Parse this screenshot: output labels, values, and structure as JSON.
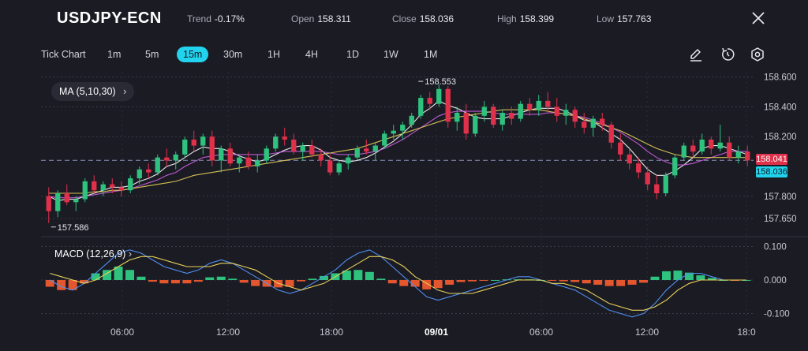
{
  "header": {
    "symbol": "USDJPY-ECN",
    "trend_label": "Trend",
    "trend_value": "-0.17%",
    "open_label": "Open",
    "open_value": "158.311",
    "close_label": "Close",
    "close_value": "158.036",
    "high_label": "High",
    "high_value": "158.399",
    "low_label": "Low",
    "low_value": "157.763",
    "close_icon": "close-icon"
  },
  "toolbar": {
    "chart_type": "Tick Chart",
    "timeframes": [
      "1m",
      "5m",
      "15m",
      "30m",
      "1H",
      "4H",
      "1D",
      "1W",
      "1M"
    ],
    "active_timeframe": "15m",
    "tools": [
      "draw-pencil-icon",
      "reset-timer-icon",
      "settings-hexagon-icon"
    ]
  },
  "indicators": {
    "ma_label": "MA",
    "ma_params": "(5,10,30)",
    "macd_label": "MACD",
    "macd_params": "(12,26,9)"
  },
  "colors": {
    "background": "#1b1b24",
    "up": "#2ec27e",
    "down": "#e0314b",
    "accent": "#22d3ee",
    "ma_fast": "#ffffff",
    "ma_mid": "#d05fe6",
    "ma_slow": "#e8d25a",
    "macd_line": "#4f8ff0",
    "signal_line": "#e8d25a",
    "hist_pos": "#2ec27e",
    "hist_neg": "#e4572e"
  },
  "chart_data": [
    {
      "type": "candlestick",
      "title": "USDJPY-ECN 15m",
      "price_axis_ticks": [
        "158.600",
        "158.400",
        "158.200",
        "158.041",
        "157.800",
        "157.650"
      ],
      "ylim": [
        157.55,
        158.63
      ],
      "time_axis_ticks": [
        "06:00",
        "12:00",
        "18:00",
        "09/01",
        "06:00",
        "12:00",
        "18:0"
      ],
      "annotations": {
        "max_label": "158.553",
        "min_label": "157.586"
      },
      "current_prices": {
        "last": "158.041",
        "close": "158.036"
      },
      "ohlc_series": [
        [
          157.8,
          157.86,
          157.62,
          157.7
        ],
        [
          157.7,
          157.84,
          157.66,
          157.82
        ],
        [
          157.82,
          157.88,
          157.74,
          157.76
        ],
        [
          157.76,
          157.8,
          157.7,
          157.78
        ],
        [
          157.78,
          157.92,
          157.76,
          157.9
        ],
        [
          157.9,
          157.94,
          157.82,
          157.84
        ],
        [
          157.84,
          157.9,
          157.8,
          157.88
        ],
        [
          157.88,
          157.92,
          157.82,
          157.86
        ],
        [
          157.86,
          157.9,
          157.8,
          157.84
        ],
        [
          157.84,
          157.94,
          157.82,
          157.92
        ],
        [
          157.92,
          158.0,
          157.88,
          157.98
        ],
        [
          157.98,
          158.02,
          157.92,
          157.96
        ],
        [
          157.96,
          158.08,
          157.94,
          158.06
        ],
        [
          158.06,
          158.12,
          158.0,
          158.04
        ],
        [
          158.04,
          158.1,
          157.98,
          158.08
        ],
        [
          158.08,
          158.2,
          158.06,
          158.18
        ],
        [
          158.18,
          158.24,
          158.1,
          158.14
        ],
        [
          158.14,
          158.22,
          158.08,
          158.2
        ],
        [
          158.2,
          158.24,
          158.0,
          158.04
        ],
        [
          158.04,
          158.14,
          157.96,
          158.12
        ],
        [
          158.12,
          158.16,
          158.0,
          158.02
        ],
        [
          158.02,
          158.08,
          157.96,
          158.06
        ],
        [
          158.06,
          158.1,
          157.98,
          158.0
        ],
        [
          158.0,
          158.08,
          157.96,
          158.04
        ],
        [
          158.04,
          158.14,
          158.02,
          158.12
        ],
        [
          158.12,
          158.22,
          158.1,
          158.2
        ],
        [
          158.2,
          158.26,
          158.14,
          158.18
        ],
        [
          158.18,
          158.22,
          158.08,
          158.1
        ],
        [
          158.1,
          158.16,
          158.04,
          158.14
        ],
        [
          158.14,
          158.18,
          158.06,
          158.08
        ],
        [
          158.08,
          158.12,
          158.0,
          158.04
        ],
        [
          158.04,
          158.08,
          157.94,
          157.96
        ],
        [
          157.96,
          158.04,
          157.94,
          158.02
        ],
        [
          158.02,
          158.08,
          157.98,
          158.06
        ],
        [
          158.06,
          158.14,
          158.04,
          158.12
        ],
        [
          158.12,
          158.18,
          158.08,
          158.1
        ],
        [
          158.1,
          158.16,
          158.04,
          158.14
        ],
        [
          158.14,
          158.24,
          158.12,
          158.22
        ],
        [
          158.22,
          158.28,
          158.18,
          158.24
        ],
        [
          158.24,
          158.3,
          158.18,
          158.28
        ],
        [
          158.28,
          158.36,
          158.26,
          158.34
        ],
        [
          158.34,
          158.48,
          158.32,
          158.46
        ],
        [
          158.46,
          158.5,
          158.38,
          158.42
        ],
        [
          158.42,
          158.55,
          158.4,
          158.52
        ],
        [
          158.52,
          158.54,
          158.26,
          158.3
        ],
        [
          158.3,
          158.4,
          158.24,
          158.36
        ],
        [
          158.36,
          158.42,
          158.18,
          158.22
        ],
        [
          158.22,
          158.36,
          158.2,
          158.34
        ],
        [
          158.34,
          158.44,
          158.3,
          158.4
        ],
        [
          158.4,
          158.42,
          158.26,
          158.28
        ],
        [
          158.28,
          158.38,
          158.24,
          158.36
        ],
        [
          158.36,
          158.4,
          158.28,
          158.32
        ],
        [
          158.32,
          158.44,
          158.3,
          158.42
        ],
        [
          158.42,
          158.46,
          158.34,
          158.38
        ],
        [
          158.38,
          158.48,
          158.34,
          158.44
        ],
        [
          158.44,
          158.5,
          158.36,
          158.4
        ],
        [
          158.4,
          158.46,
          158.3,
          158.34
        ],
        [
          158.34,
          158.42,
          158.28,
          158.38
        ],
        [
          158.38,
          158.4,
          158.26,
          158.3
        ],
        [
          158.3,
          158.36,
          158.22,
          158.26
        ],
        [
          158.26,
          158.34,
          158.2,
          158.32
        ],
        [
          158.32,
          158.36,
          158.24,
          158.28
        ],
        [
          158.28,
          158.3,
          158.12,
          158.16
        ],
        [
          158.16,
          158.22,
          158.04,
          158.08
        ],
        [
          158.08,
          158.12,
          157.98,
          158.02
        ],
        [
          158.02,
          158.06,
          157.92,
          157.96
        ],
        [
          157.96,
          158.0,
          157.84,
          157.88
        ],
        [
          157.88,
          157.94,
          157.78,
          157.82
        ],
        [
          157.82,
          157.96,
          157.8,
          157.94
        ],
        [
          157.94,
          158.08,
          157.92,
          158.06
        ],
        [
          158.06,
          158.16,
          158.04,
          158.14
        ],
        [
          158.14,
          158.18,
          158.06,
          158.1
        ],
        [
          158.1,
          158.22,
          158.08,
          158.18
        ],
        [
          158.18,
          158.2,
          158.08,
          158.12
        ],
        [
          158.12,
          158.28,
          158.1,
          158.16
        ],
        [
          158.16,
          158.2,
          158.04,
          158.06
        ],
        [
          158.06,
          158.14,
          158.02,
          158.1
        ],
        [
          158.1,
          158.14,
          158.0,
          158.04
        ]
      ],
      "ma_series": {
        "ma5": [
          157.8,
          157.77,
          157.78,
          157.78,
          157.8,
          157.82,
          157.84,
          157.86,
          157.86,
          157.87,
          157.9,
          157.92,
          157.95,
          158.0,
          158.02,
          158.06,
          158.1,
          158.13,
          158.12,
          158.12,
          158.1,
          158.07,
          158.05,
          158.03,
          158.05,
          158.08,
          158.11,
          158.13,
          158.14,
          158.14,
          158.11,
          158.06,
          158.04,
          158.03,
          158.04,
          158.06,
          158.09,
          158.13,
          158.17,
          158.22,
          158.28,
          158.35,
          158.39,
          158.44,
          158.41,
          158.39,
          158.36,
          158.33,
          158.32,
          158.32,
          158.32,
          158.34,
          158.36,
          158.38,
          158.39,
          158.39,
          158.39,
          158.37,
          158.34,
          158.31,
          158.3,
          158.26,
          158.22,
          158.18,
          158.12,
          158.05,
          157.98,
          157.94,
          157.94,
          157.97,
          158.01,
          158.06,
          158.12,
          158.14,
          158.14,
          158.12,
          158.1,
          158.08
        ],
        "ma10": [
          157.8,
          157.79,
          157.79,
          157.79,
          157.8,
          157.81,
          157.82,
          157.83,
          157.84,
          157.85,
          157.87,
          157.89,
          157.91,
          157.94,
          157.96,
          158.0,
          158.03,
          158.06,
          158.07,
          158.08,
          158.08,
          158.08,
          158.08,
          158.08,
          158.08,
          158.09,
          158.1,
          158.1,
          158.1,
          158.1,
          158.1,
          158.09,
          158.08,
          158.08,
          158.08,
          158.09,
          158.1,
          158.12,
          158.15,
          158.18,
          158.22,
          158.26,
          158.3,
          158.34,
          158.36,
          158.37,
          158.37,
          158.37,
          158.37,
          158.36,
          158.35,
          158.35,
          158.35,
          158.35,
          158.35,
          158.36,
          158.36,
          158.35,
          158.34,
          158.33,
          158.31,
          158.29,
          158.26,
          158.23,
          158.19,
          158.15,
          158.1,
          158.06,
          158.03,
          158.01,
          158.01,
          158.02,
          158.04,
          158.06,
          158.08,
          158.1,
          158.1,
          158.1
        ],
        "ma30": [
          157.82,
          157.82,
          157.82,
          157.82,
          157.82,
          157.83,
          157.83,
          157.84,
          157.84,
          157.85,
          157.86,
          157.87,
          157.88,
          157.89,
          157.9,
          157.92,
          157.94,
          157.95,
          157.96,
          157.97,
          157.98,
          157.99,
          158.0,
          158.01,
          158.02,
          158.03,
          158.04,
          158.05,
          158.06,
          158.07,
          158.08,
          158.09,
          158.1,
          158.11,
          158.12,
          158.14,
          158.16,
          158.18,
          158.2,
          158.22,
          158.24,
          158.26,
          158.28,
          158.3,
          158.32,
          158.33,
          158.34,
          158.35,
          158.36,
          158.37,
          158.38,
          158.38,
          158.38,
          158.38,
          158.38,
          158.37,
          158.36,
          158.35,
          158.34,
          158.32,
          158.3,
          158.28,
          158.26,
          158.24,
          158.21,
          158.18,
          158.15,
          158.12,
          158.1,
          158.08,
          158.07,
          158.06,
          158.06,
          158.06,
          158.06,
          158.06,
          158.06,
          158.06
        ]
      }
    },
    {
      "type": "macd",
      "title": "MACD (12,26,9)",
      "value_axis_ticks": [
        "0.100",
        "0.000",
        "-0.100"
      ],
      "ylim": [
        -0.12,
        0.12
      ],
      "macd_line": [
        0.0,
        -0.02,
        -0.03,
        -0.01,
        0.02,
        0.05,
        0.08,
        0.09,
        0.08,
        0.06,
        0.04,
        0.03,
        0.02,
        0.03,
        0.05,
        0.06,
        0.05,
        0.03,
        0.01,
        -0.01,
        -0.03,
        -0.04,
        -0.03,
        -0.01,
        0.01,
        0.03,
        0.06,
        0.08,
        0.09,
        0.07,
        0.04,
        0.01,
        -0.02,
        -0.05,
        -0.06,
        -0.05,
        -0.04,
        -0.03,
        -0.02,
        -0.01,
        0.0,
        0.01,
        0.01,
        0.0,
        -0.01,
        -0.02,
        -0.03,
        -0.05,
        -0.07,
        -0.09,
        -0.1,
        -0.11,
        -0.1,
        -0.07,
        -0.03,
        0.0,
        0.02,
        0.02,
        0.01,
        0.0,
        0.0,
        0.0
      ],
      "signal_line": [
        0.02,
        0.01,
        0.0,
        -0.01,
        0.0,
        0.02,
        0.04,
        0.06,
        0.07,
        0.07,
        0.06,
        0.05,
        0.04,
        0.04,
        0.04,
        0.05,
        0.05,
        0.04,
        0.03,
        0.01,
        -0.01,
        -0.02,
        -0.03,
        -0.02,
        -0.01,
        0.01,
        0.03,
        0.05,
        0.07,
        0.07,
        0.06,
        0.04,
        0.01,
        -0.01,
        -0.03,
        -0.04,
        -0.04,
        -0.04,
        -0.03,
        -0.02,
        -0.01,
        0.0,
        0.0,
        0.0,
        -0.01,
        -0.01,
        -0.02,
        -0.03,
        -0.05,
        -0.07,
        -0.08,
        -0.09,
        -0.09,
        -0.08,
        -0.06,
        -0.03,
        -0.01,
        0.0,
        0.0,
        0.0,
        0.0,
        0.0
      ],
      "histogram": [
        -0.02,
        -0.03,
        -0.03,
        -0.01,
        0.02,
        0.03,
        0.04,
        0.03,
        0.01,
        -0.005,
        -0.01,
        -0.01,
        -0.01,
        -0.005,
        0.008,
        0.01,
        0.004,
        -0.008,
        -0.018,
        -0.02,
        -0.022,
        -0.02,
        -0.004,
        0.004,
        0.012,
        0.02,
        0.028,
        0.03,
        0.024,
        0.004,
        -0.01,
        -0.018,
        -0.02,
        -0.028,
        -0.024,
        -0.014,
        -0.006,
        -0.004,
        -0.002,
        0.0,
        0.002,
        0.002,
        0.002,
        0.0,
        -0.002,
        -0.004,
        -0.006,
        -0.01,
        -0.014,
        -0.018,
        -0.018,
        -0.014,
        -0.008,
        0.01,
        0.026,
        0.028,
        0.022,
        0.014,
        0.006,
        0.0,
        -0.002,
        0.0
      ]
    }
  ]
}
